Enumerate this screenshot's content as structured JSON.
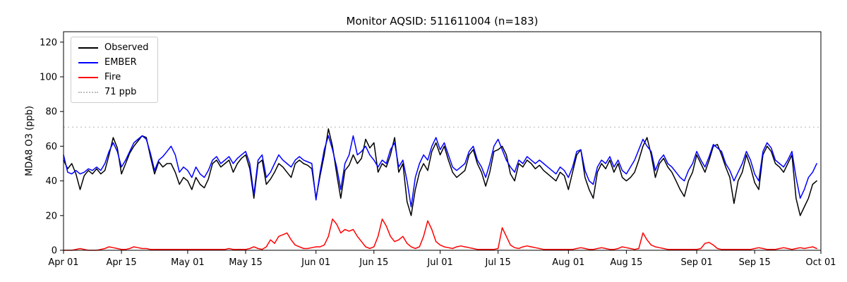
{
  "chart_data": {
    "type": "line",
    "title": "Monitor AQSID: 511611004 (n=183)",
    "xlabel": "",
    "ylabel": "MDA8 O3 (ppb)",
    "ylim": [
      0,
      126
    ],
    "yticks": [
      0,
      20,
      40,
      60,
      80,
      100,
      120
    ],
    "n_days": 183,
    "grid": false,
    "legend_position": "upper left",
    "xticks": [
      {
        "label": "Apr 01",
        "day": 0
      },
      {
        "label": "Apr 15",
        "day": 14
      },
      {
        "label": "May 01",
        "day": 30
      },
      {
        "label": "May 15",
        "day": 44
      },
      {
        "label": "Jun 01",
        "day": 61
      },
      {
        "label": "Jun 15",
        "day": 75
      },
      {
        "label": "Jul 01",
        "day": 91
      },
      {
        "label": "Jul 15",
        "day": 105
      },
      {
        "label": "Aug 01",
        "day": 122
      },
      {
        "label": "Aug 15",
        "day": 136
      },
      {
        "label": "Sep 01",
        "day": 153
      },
      {
        "label": "Sep 15",
        "day": 167
      },
      {
        "label": "Oct 01",
        "day": 183
      }
    ],
    "threshold": {
      "value": 71,
      "label": "71 ppb",
      "color": "#bdbdbd",
      "style": "dotted"
    },
    "series": [
      {
        "name": "Observed",
        "color": "#000000",
        "values": [
          52,
          47,
          50,
          44,
          35,
          43,
          46,
          44,
          47,
          44,
          46,
          55,
          65,
          59,
          44,
          50,
          56,
          60,
          63,
          66,
          65,
          54,
          44,
          51,
          48,
          50,
          50,
          45,
          38,
          42,
          40,
          35,
          42,
          38,
          36,
          41,
          50,
          52,
          48,
          50,
          52,
          45,
          50,
          53,
          55,
          47,
          30,
          50,
          52,
          38,
          41,
          45,
          50,
          48,
          45,
          42,
          50,
          52,
          50,
          49,
          47,
          30,
          43,
          55,
          70,
          60,
          44,
          30,
          46,
          49,
          55,
          50,
          53,
          64,
          59,
          62,
          45,
          50,
          48,
          55,
          65,
          45,
          50,
          28,
          20,
          35,
          45,
          50,
          46,
          57,
          62,
          55,
          60,
          52,
          45,
          42,
          44,
          46,
          55,
          58,
          50,
          45,
          37,
          45,
          57,
          58,
          60,
          55,
          44,
          40,
          50,
          48,
          52,
          50,
          47,
          49,
          46,
          44,
          42,
          40,
          45,
          43,
          35,
          45,
          55,
          58,
          42,
          35,
          30,
          45,
          50,
          47,
          52,
          45,
          50,
          42,
          40,
          42,
          45,
          52,
          60,
          65,
          55,
          42,
          50,
          53,
          48,
          45,
          40,
          35,
          31,
          40,
          45,
          55,
          50,
          45,
          52,
          60,
          61,
          55,
          48,
          42,
          27,
          40,
          45,
          55,
          48,
          39,
          35,
          55,
          60,
          57,
          50,
          48,
          45,
          50,
          55,
          30,
          20,
          25,
          30,
          38,
          40
        ]
      },
      {
        "name": "EMBER",
        "color": "#0000ff",
        "values": [
          55,
          45,
          44,
          46,
          44,
          45,
          47,
          46,
          48,
          46,
          50,
          57,
          62,
          57,
          48,
          52,
          57,
          62,
          64,
          66,
          64,
          56,
          46,
          52,
          54,
          57,
          60,
          55,
          45,
          48,
          46,
          42,
          48,
          44,
          42,
          46,
          52,
          54,
          50,
          52,
          54,
          50,
          53,
          55,
          57,
          50,
          32,
          52,
          55,
          42,
          45,
          50,
          55,
          52,
          50,
          48,
          52,
          54,
          52,
          51,
          50,
          29,
          45,
          58,
          66,
          58,
          48,
          35,
          50,
          55,
          66,
          55,
          57,
          60,
          55,
          52,
          48,
          52,
          50,
          58,
          62,
          48,
          52,
          40,
          25,
          42,
          50,
          55,
          52,
          60,
          65,
          58,
          62,
          55,
          48,
          46,
          48,
          50,
          57,
          60,
          52,
          48,
          42,
          50,
          60,
          64,
          58,
          52,
          48,
          45,
          52,
          50,
          54,
          52,
          50,
          52,
          50,
          48,
          46,
          44,
          48,
          46,
          42,
          48,
          57,
          58,
          46,
          40,
          38,
          48,
          52,
          50,
          54,
          48,
          52,
          46,
          44,
          48,
          52,
          58,
          64,
          60,
          57,
          46,
          52,
          55,
          50,
          48,
          45,
          42,
          40,
          46,
          50,
          57,
          52,
          48,
          54,
          61,
          59,
          57,
          50,
          46,
          40,
          45,
          50,
          57,
          52,
          44,
          40,
          57,
          62,
          59,
          52,
          50,
          48,
          52,
          57,
          42,
          30,
          35,
          42,
          45,
          50
        ]
      },
      {
        "name": "Fire",
        "color": "#ff0000",
        "values": [
          0,
          0,
          0,
          0.5,
          1,
          0.5,
          0,
          0,
          0,
          0.5,
          1,
          2,
          1.5,
          1,
          0.5,
          0.5,
          1,
          2,
          1.5,
          1,
          1,
          0.5,
          0.5,
          0.5,
          0.5,
          0.5,
          0.5,
          0.5,
          0.5,
          0.5,
          0.5,
          0.5,
          0.5,
          0.5,
          0.5,
          0.5,
          0.5,
          0.5,
          0.5,
          0.5,
          1,
          0.5,
          0.5,
          0.5,
          0.5,
          1,
          2,
          1,
          0.5,
          2,
          6,
          4,
          8,
          9,
          10,
          6,
          3,
          2,
          1,
          1,
          1.5,
          2,
          2,
          3,
          8,
          18,
          15,
          10,
          12,
          11,
          12,
          8,
          5,
          2,
          1,
          2,
          8,
          18,
          14,
          8,
          5,
          6,
          8,
          4,
          2,
          1,
          2,
          8,
          17,
          12,
          5,
          3,
          2,
          1.5,
          1,
          2,
          2.5,
          2,
          1.5,
          1,
          0.5,
          0.5,
          0.5,
          0.5,
          0.5,
          1,
          13,
          8,
          3,
          1.5,
          1,
          2,
          2.5,
          2,
          1.5,
          1,
          0.5,
          0.5,
          0.5,
          0.5,
          0.5,
          0.5,
          0.5,
          0.5,
          1,
          1.5,
          1,
          0.5,
          0.5,
          1,
          1.5,
          1,
          0.5,
          0.5,
          1,
          2,
          1.5,
          1,
          0.5,
          1,
          10,
          6,
          3,
          2,
          1.5,
          1,
          0.5,
          0.5,
          0.5,
          0.5,
          0.5,
          0.5,
          0.5,
          0.5,
          1,
          4,
          4.5,
          3,
          1,
          0.5,
          0.5,
          0.5,
          0.5,
          0.5,
          0.5,
          0.5,
          0.5,
          1,
          1.5,
          1,
          0.5,
          0.5,
          0.5,
          1,
          1.5,
          1,
          0.5,
          1,
          1.5,
          1,
          1.5,
          2,
          1
        ]
      }
    ]
  }
}
